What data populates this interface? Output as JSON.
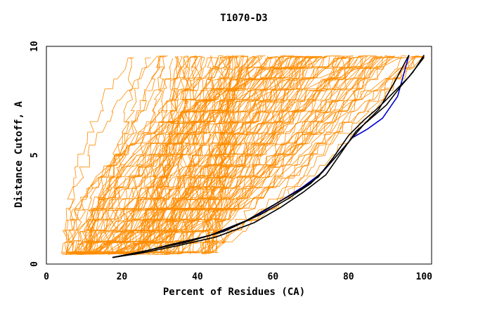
{
  "chart_data": {
    "type": "line",
    "title": "T1070-D3",
    "xlabel": "Percent of Residues (CA)",
    "ylabel": "Distance Cutoff, A",
    "xlim": [
      0,
      102
    ],
    "ylim": [
      0,
      10
    ],
    "xticks": [
      0,
      20,
      40,
      60,
      80,
      100
    ],
    "yticks": [
      0,
      5,
      10
    ],
    "colors": {
      "others": "#ff8c00",
      "highlight_blue": "#0000cc",
      "highlight_black": "#000000",
      "frame": "#000000"
    },
    "highlight_series": [
      {
        "color_key": "highlight_blue",
        "x": [
          17.5,
          25,
          35,
          45,
          55,
          62,
          68,
          73,
          77,
          81,
          85,
          89,
          93,
          96
        ],
        "y": [
          0.3,
          0.55,
          0.95,
          1.4,
          2.15,
          2.9,
          3.55,
          4.2,
          5.0,
          5.8,
          6.2,
          6.7,
          7.7,
          9.6
        ]
      },
      {
        "color_key": "highlight_black",
        "x": [
          17.5,
          25,
          35,
          45,
          55,
          62,
          68,
          74,
          78,
          82,
          86,
          90,
          94,
          97,
          100
        ],
        "y": [
          0.3,
          0.5,
          0.85,
          1.25,
          1.9,
          2.6,
          3.3,
          4.1,
          5.1,
          6.1,
          6.7,
          7.3,
          8.2,
          8.8,
          9.6
        ]
      },
      {
        "color_key": "highlight_black",
        "x": [
          17.5,
          26,
          37,
          47,
          57,
          64,
          70,
          75,
          80,
          84,
          88,
          92,
          96
        ],
        "y": [
          0.3,
          0.6,
          1.0,
          1.5,
          2.3,
          3.0,
          3.7,
          4.6,
          5.6,
          6.4,
          7.1,
          8.3,
          9.6
        ]
      },
      {
        "color_key": "highlight_black",
        "x": [
          17.5,
          24,
          33,
          43,
          53,
          60,
          67,
          72,
          76,
          80,
          84,
          88,
          92,
          96,
          100
        ],
        "y": [
          0.3,
          0.5,
          0.9,
          1.3,
          2.0,
          2.7,
          3.4,
          4.0,
          4.9,
          5.9,
          6.6,
          7.2,
          7.9,
          8.6,
          9.5
        ]
      }
    ],
    "generated_series": {
      "count": 150,
      "y_start": 0.3,
      "y_end": 9.6,
      "start_x_range": [
        5,
        45
      ],
      "end_x_range": [
        18,
        100
      ],
      "step_count": 38
    },
    "grid": false,
    "legend": "none"
  }
}
